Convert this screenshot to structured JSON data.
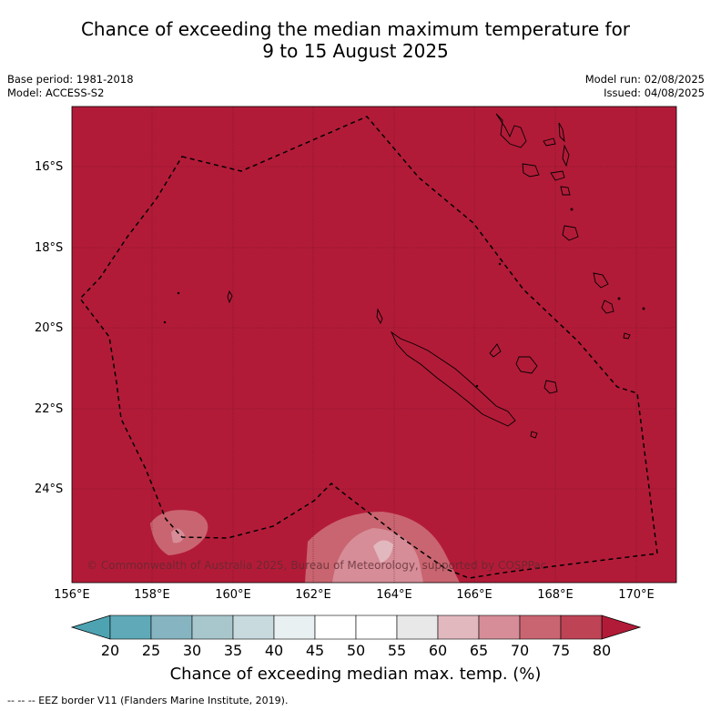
{
  "title_line1": "Chance of exceeding the median maximum temperature for",
  "title_line2": "9 to 15 August 2025",
  "meta_left": {
    "base_period": "Base period: 1981-2018",
    "model": "Model: ACCESS-S2"
  },
  "meta_right": {
    "model_run": "Model run: 02/08/2025",
    "issued": "Issued: 04/08/2025"
  },
  "map": {
    "background_color": "#b21b38",
    "lat_labels": [
      "16°S",
      "18°S",
      "20°S",
      "22°S",
      "24°S"
    ],
    "lon_labels": [
      "156°E",
      "158°E",
      "160°E",
      "162°E",
      "164°E",
      "166°E",
      "168°E",
      "170°E"
    ],
    "copyright": "© Commonwealth of Australia 2025, Bureau of Meteorology, supported by COSPPac"
  },
  "colorbar": {
    "colors": [
      "#5fa9b8",
      "#86b5c1",
      "#a8c7cd",
      "#c8dadd",
      "#e9f0f1",
      "#ffffff",
      "#ffffff",
      "#e8e8e8",
      "#e2b8bf",
      "#d68d98",
      "#c96570",
      "#bd4355"
    ],
    "under_color": "#4ea3b2",
    "over_color": "#b21b38",
    "tick_labels": [
      "20",
      "25",
      "30",
      "35",
      "40",
      "45",
      "50",
      "55",
      "60",
      "65",
      "70",
      "75",
      "80"
    ],
    "label": "Chance of exceeding median max. temp. (%)"
  },
  "footer": "--  --  -- EEZ border V11 (Flanders Marine Institute, 2019)."
}
